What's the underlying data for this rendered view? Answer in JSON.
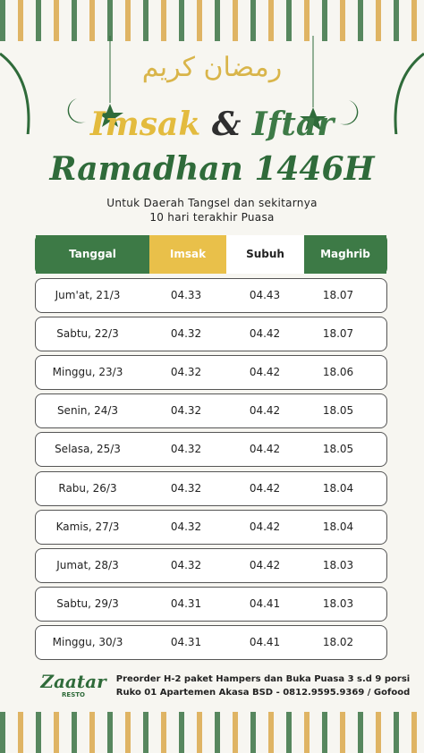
{
  "header": {
    "arabic": "رمضان كريم",
    "title_part1": "Imsak",
    "title_amp": "&",
    "title_part2": "Iftar",
    "title_line2": "Ramadhan 1446H",
    "subtitle_line1": "Untuk Daerah Tangsel dan sekitarnya",
    "subtitle_line2": "10 hari terakhir Puasa"
  },
  "table": {
    "columns": [
      "Tanggal",
      "Imsak",
      "Subuh",
      "Maghrib"
    ],
    "rows": [
      [
        "Jum'at, 21/3",
        "04.33",
        "04.43",
        "18.07"
      ],
      [
        "Sabtu, 22/3",
        "04.32",
        "04.42",
        "18.07"
      ],
      [
        "Minggu, 23/3",
        "04.32",
        "04.42",
        "18.06"
      ],
      [
        "Senin, 24/3",
        "04.32",
        "04.42",
        "18.05"
      ],
      [
        "Selasa, 25/3",
        "04.32",
        "04.42",
        "18.05"
      ],
      [
        "Rabu, 26/3",
        "04.32",
        "04.42",
        "18.04"
      ],
      [
        "Kamis, 27/3",
        "04.32",
        "04.42",
        "18.04"
      ],
      [
        "Jumat, 28/3",
        "04.32",
        "04.42",
        "18.03"
      ],
      [
        "Sabtu, 29/3",
        "04.31",
        "04.41",
        "18.03"
      ],
      [
        "Minggu, 30/3",
        "04.31",
        "04.41",
        "18.02"
      ]
    ]
  },
  "footer": {
    "logo": "Zaatar",
    "logo_sub": "RESTO",
    "line1": "Preorder H-2 paket Hampers dan Buka Puasa 3 s.d 9 porsi",
    "line2": "Ruko 01 Apartemen Akasa BSD - 0812.9595.9369 / Gofood"
  }
}
